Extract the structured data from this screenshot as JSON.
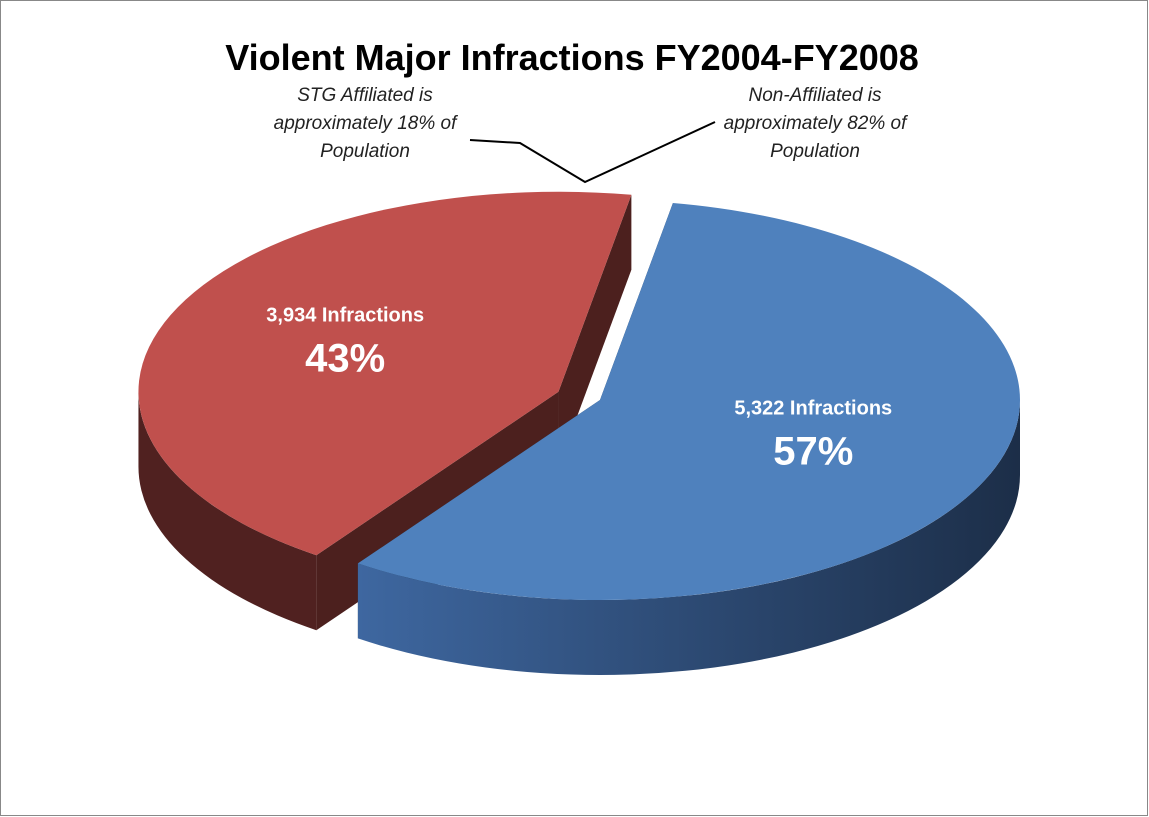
{
  "chart_data": {
    "type": "pie",
    "title": "Violent Major Infractions FY2004-FY2008",
    "values": [
      43,
      57
    ],
    "value_labels": [
      "43%",
      "57%"
    ],
    "slice_labels": [
      "3,934 Infractions",
      "5,322 Infractions"
    ],
    "colors": [
      "#c0504d",
      "#4f81bd"
    ],
    "annotations": [
      "STG Affiliated is approximately 18% of Population",
      "Non-Affiliated is approximately 82% of Population"
    ]
  }
}
